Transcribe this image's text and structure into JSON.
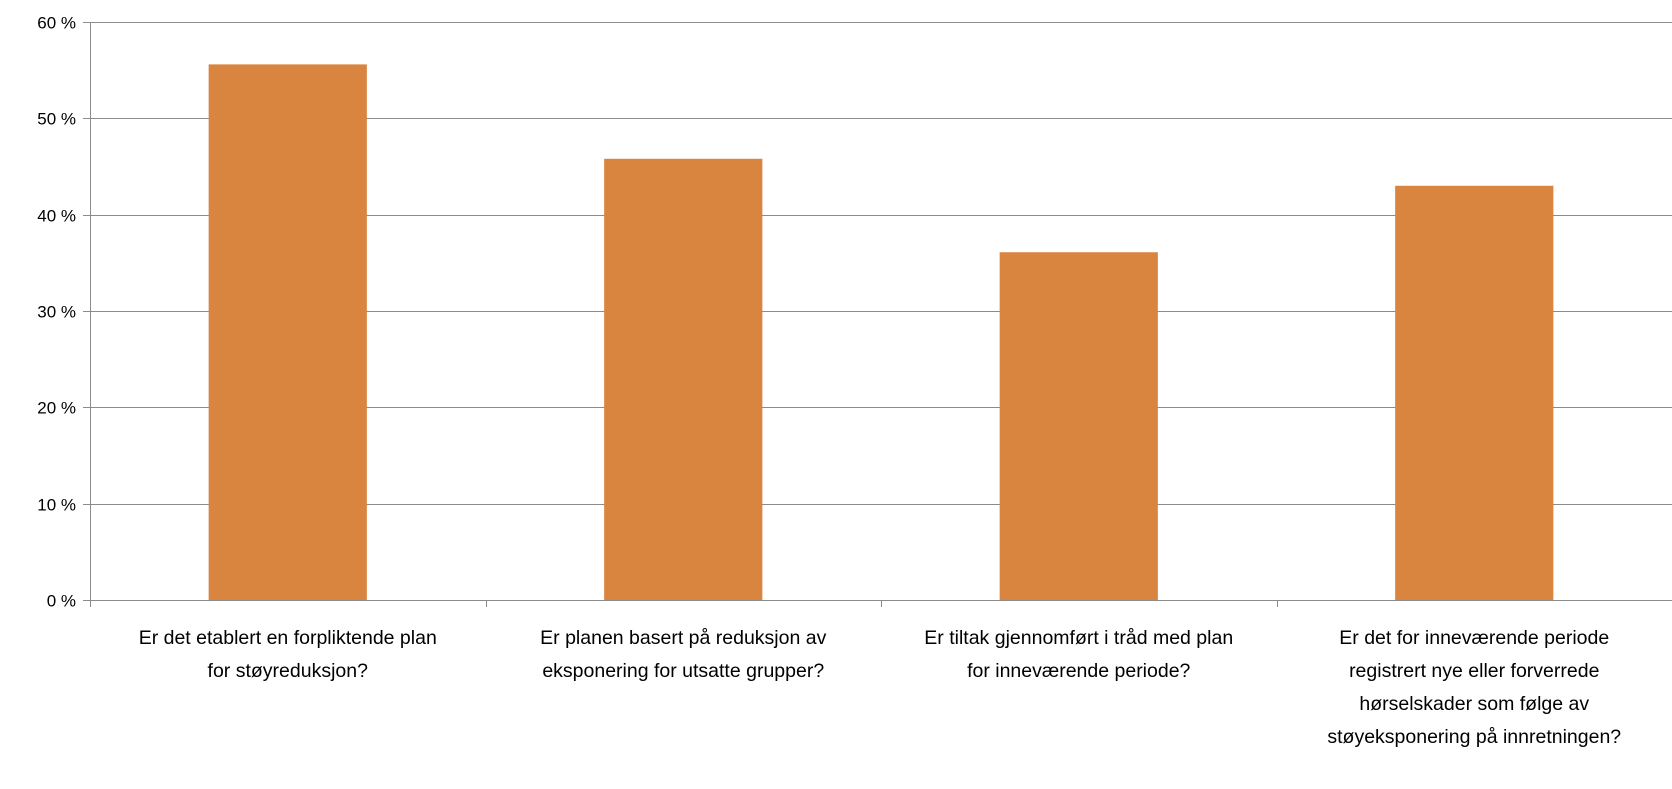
{
  "chart_data": {
    "type": "bar",
    "title": "",
    "xlabel": "",
    "ylabel": "",
    "ylim": [
      0,
      60
    ],
    "yticks": [
      0,
      10,
      20,
      30,
      40,
      50,
      60
    ],
    "ytick_suffix": " %",
    "grid": true,
    "bar_color": "#D9843F",
    "categories": [
      [
        "Er det etablert en forpliktende plan",
        "for støyreduksjon?"
      ],
      [
        "Er planen basert på reduksjon av",
        "eksponering for utsatte grupper?"
      ],
      [
        "Er tiltak gjennomført i tråd med plan",
        "for inneværende periode?"
      ],
      [
        "Er det for inneværende periode",
        "registrert nye eller forverrede",
        "hørselskader som følge av",
        "støyeksponering på innretningen?"
      ]
    ],
    "values": [
      55.6,
      45.8,
      36.1,
      43.0
    ]
  }
}
